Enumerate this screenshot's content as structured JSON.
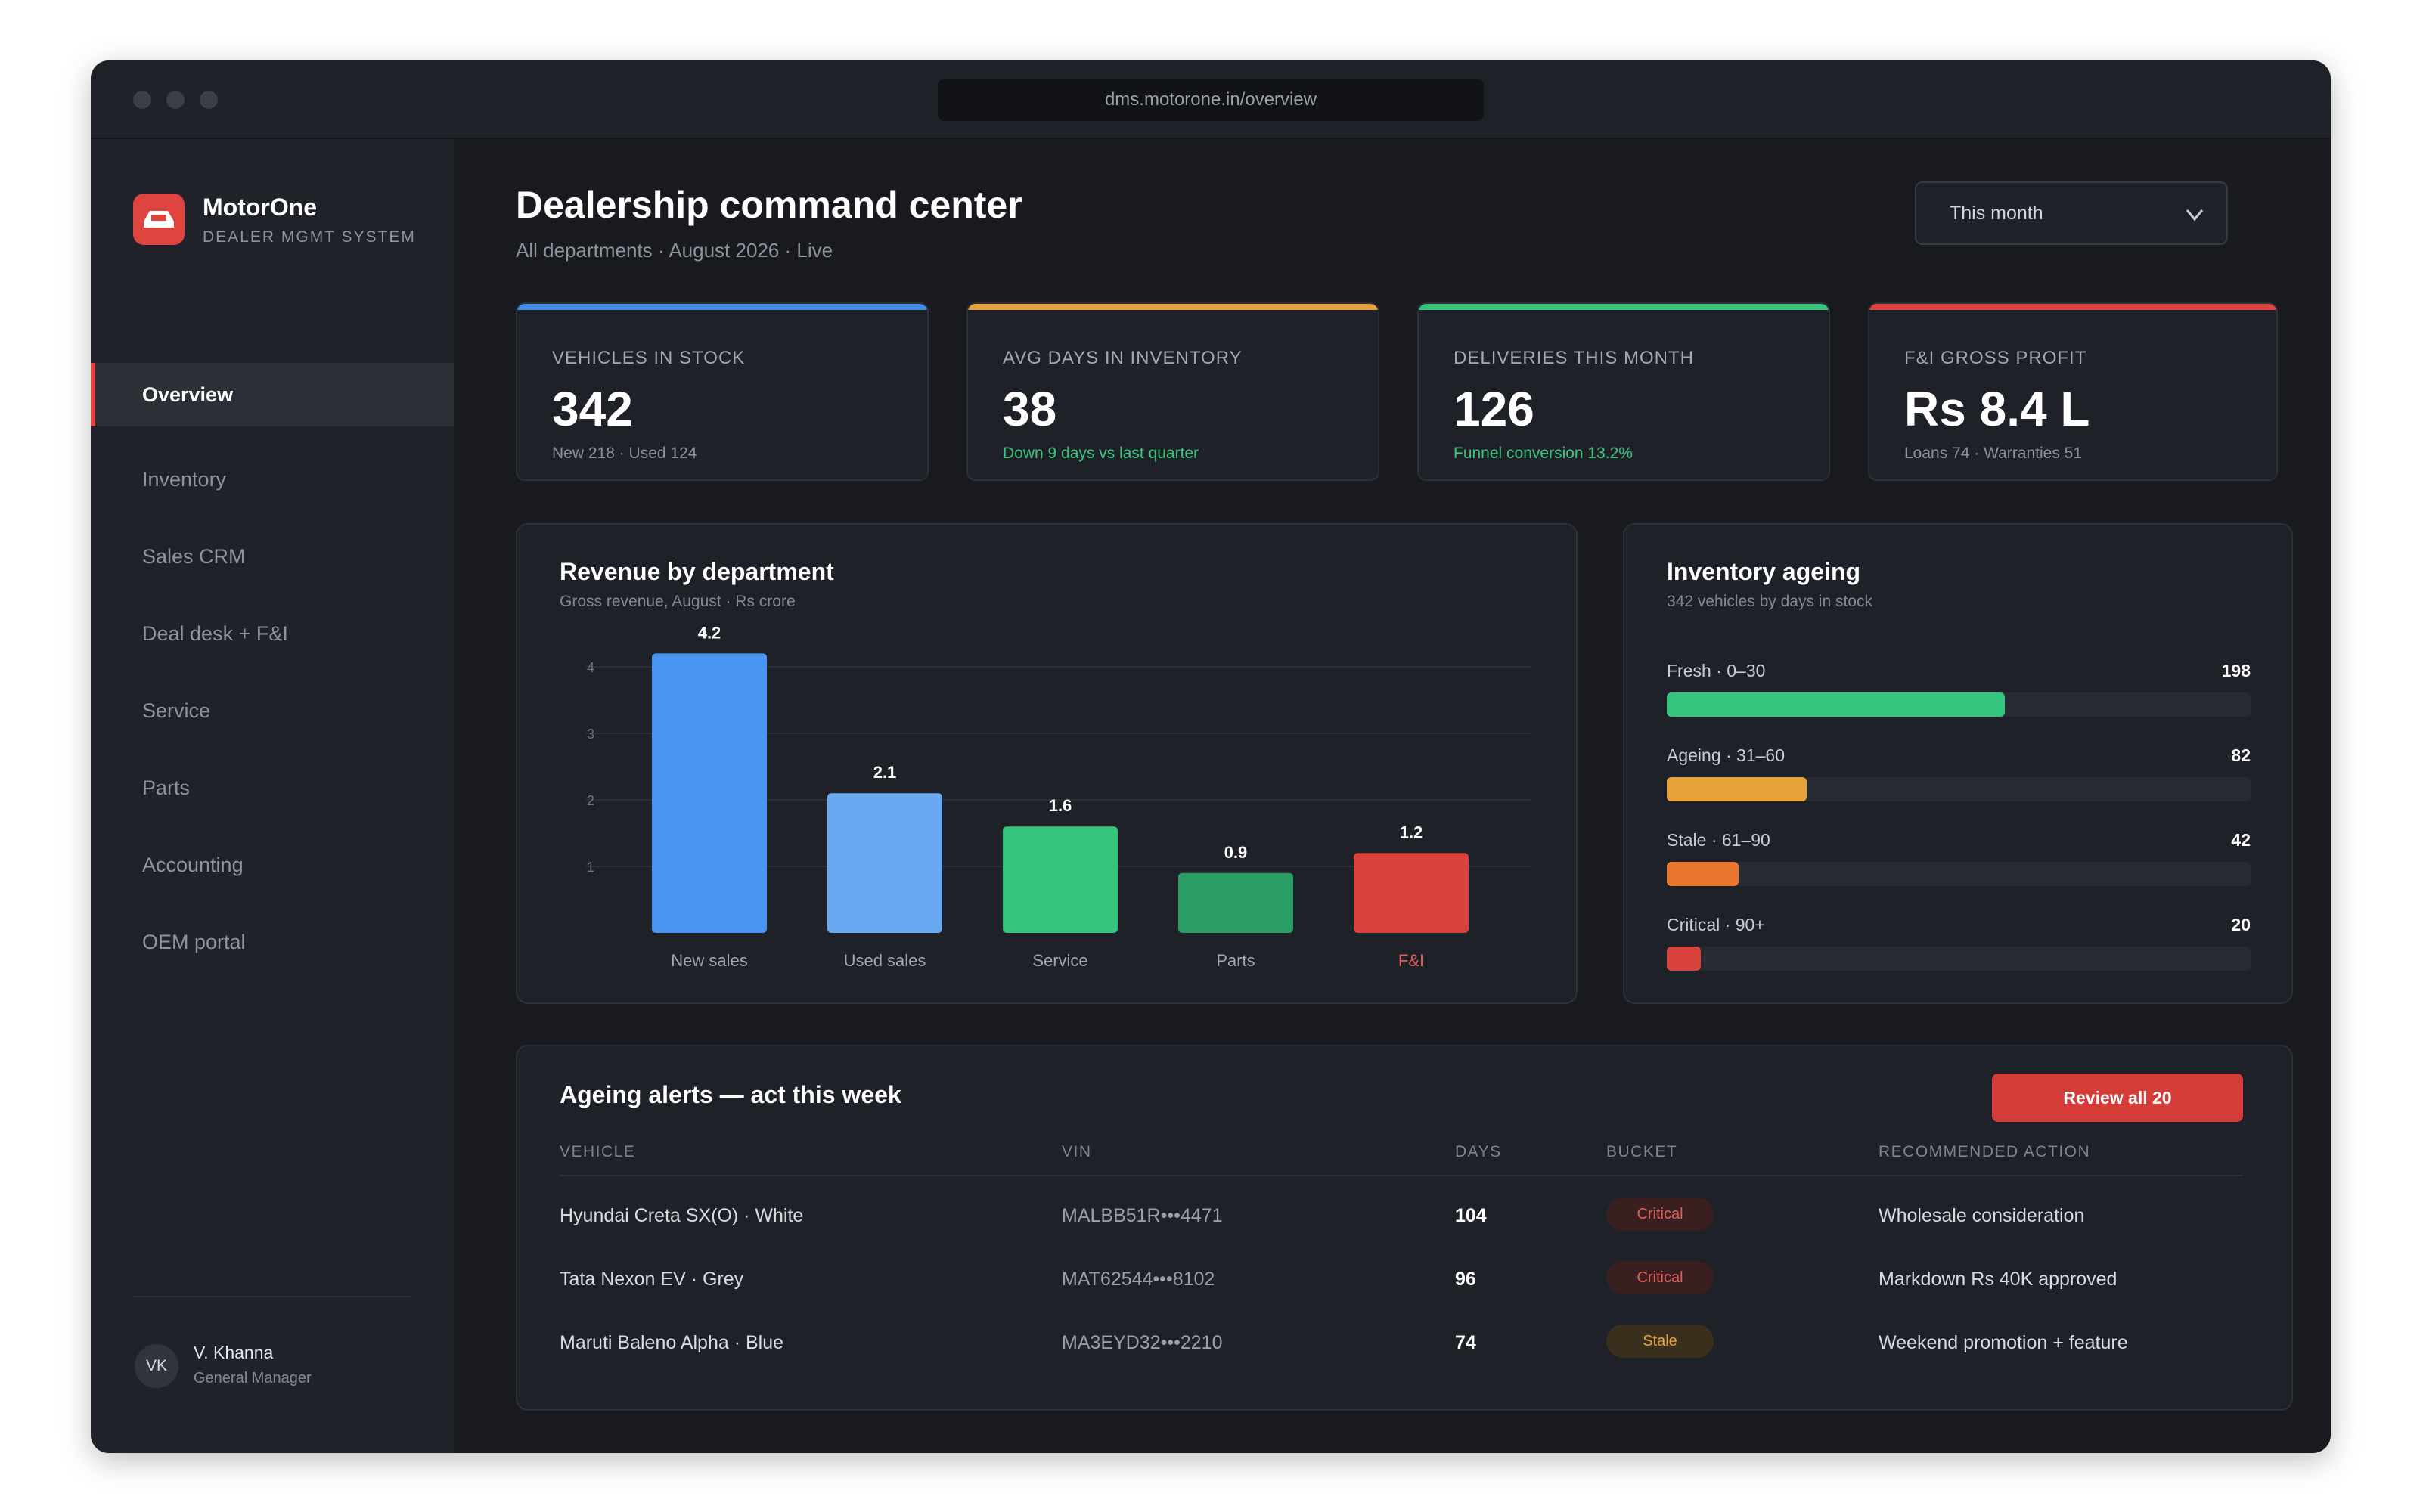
{
  "browser": {
    "url": "dms.motorone.in/overview"
  },
  "brand": {
    "name": "MotorOne",
    "subtitle": "DEALER MGMT SYSTEM",
    "logo_icon": "car-icon",
    "color": "#e0443e"
  },
  "nav": {
    "items": [
      {
        "label": "Overview",
        "active": true
      },
      {
        "label": "Inventory",
        "active": false
      },
      {
        "label": "Sales CRM",
        "active": false
      },
      {
        "label": "Deal desk + F&I",
        "active": false
      },
      {
        "label": "Service",
        "active": false
      },
      {
        "label": "Parts",
        "active": false
      },
      {
        "label": "Accounting",
        "active": false
      },
      {
        "label": "OEM portal",
        "active": false
      }
    ]
  },
  "user": {
    "initials": "VK",
    "name": "V. Khanna",
    "role": "General Manager"
  },
  "header": {
    "title": "Dealership command center",
    "subtitle": "All departments · August 2026 · Live",
    "period_select": "This month"
  },
  "kpis": [
    {
      "label": "VEHICLES IN STOCK",
      "value": "342",
      "sub": "New 218 · Used 124",
      "accent": "#3f8fe8",
      "sub_color": "#8d939b"
    },
    {
      "label": "AVG DAYS IN INVENTORY",
      "value": "38",
      "sub": "Down 9 days vs last quarter",
      "accent": "#e8a23c",
      "sub_color": "#3cc77f"
    },
    {
      "label": "DELIVERIES THIS MONTH",
      "value": "126",
      "sub": "Funnel conversion 13.2%",
      "accent": "#34c47c",
      "sub_color": "#3cc77f"
    },
    {
      "label": "F&I GROSS PROFIT",
      "value": "Rs 8.4 L",
      "sub": "Loans 74 · Warranties 51",
      "accent": "#e0443e",
      "sub_color": "#8d939b"
    }
  ],
  "revenue_panel": {
    "title": "Revenue by department",
    "subtitle": "Gross revenue, August · Rs crore"
  },
  "chart_data": {
    "type": "bar",
    "title": "Revenue by department",
    "subtitle": "Gross revenue, August · Rs crore",
    "categories": [
      "New sales",
      "Used sales",
      "Service",
      "Parts",
      "F&I"
    ],
    "values": [
      4.2,
      2.1,
      1.6,
      0.9,
      1.2
    ],
    "value_labels": [
      "4.2",
      "2.1",
      "1.6",
      "0.9",
      "1.2"
    ],
    "colors": [
      "#4a97f3",
      "#6aa9f2",
      "#33c47d",
      "#2a9d63",
      "#d9433e"
    ],
    "highlight_category": "F&I",
    "highlight_color": "#e0605a",
    "y_ticks": [
      1,
      2,
      3,
      4
    ],
    "ylim": [
      0,
      4.2
    ],
    "grid": true
  },
  "ageing_panel": {
    "title": "Inventory ageing",
    "subtitle": "342 vehicles by days in stock",
    "total": 342,
    "rows": [
      {
        "label": "Fresh · 0–30",
        "count": "198",
        "value": 198,
        "color": "#33c47d"
      },
      {
        "label": "Ageing · 31–60",
        "count": "82",
        "value": 82,
        "color": "#e8a23c"
      },
      {
        "label": "Stale · 61–90",
        "count": "42",
        "value": 42,
        "color": "#e8762e"
      },
      {
        "label": "Critical · 90+",
        "count": "20",
        "value": 20,
        "color": "#d9433e"
      }
    ]
  },
  "alerts": {
    "title": "Ageing alerts — act this week",
    "button": "Review all 20",
    "columns": {
      "vehicle": "VEHICLE",
      "vin": "VIN",
      "days": "DAYS",
      "bucket": "BUCKET",
      "action": "RECOMMENDED ACTION"
    },
    "rows": [
      {
        "vehicle": "Hyundai Creta SX(O) · White",
        "vin": "MALBB51R•••4471",
        "days": "104",
        "bucket": "Critical",
        "action": "Wholesale consideration"
      },
      {
        "vehicle": "Tata Nexon EV · Grey",
        "vin": "MAT62544•••8102",
        "days": "96",
        "bucket": "Critical",
        "action": "Markdown Rs 40K approved"
      },
      {
        "vehicle": "Maruti Baleno Alpha · Blue",
        "vin": "MA3EYD32•••2210",
        "days": "74",
        "bucket": "Stale",
        "action": "Weekend promotion + feature"
      }
    ]
  }
}
